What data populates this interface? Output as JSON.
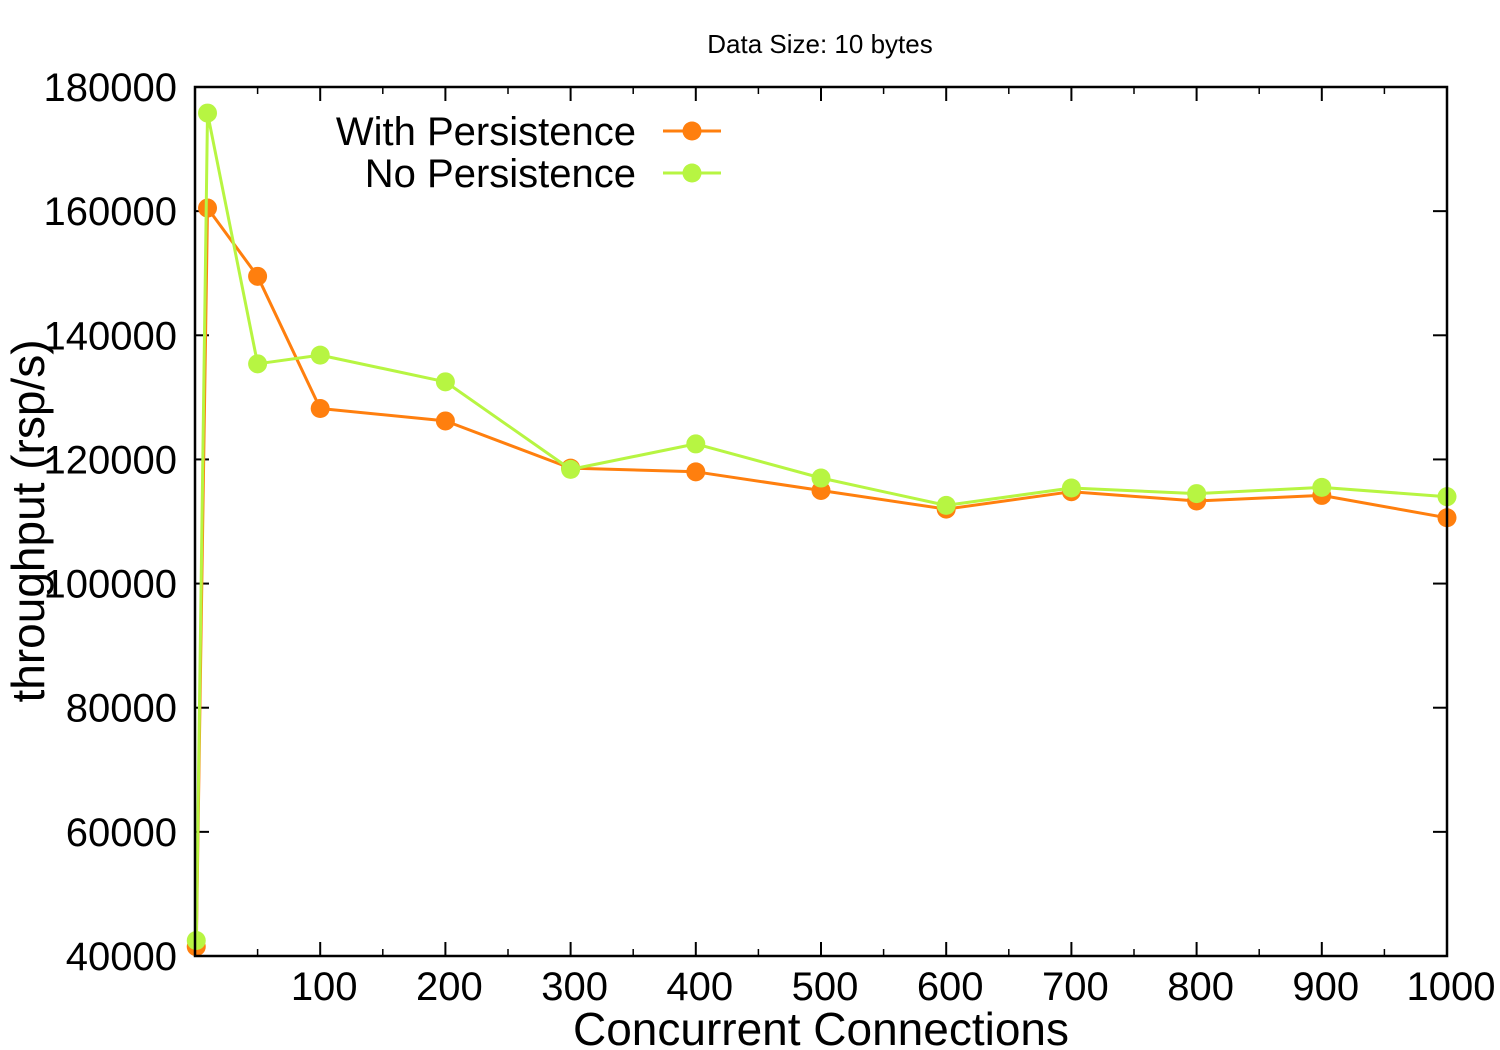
{
  "chart_data": {
    "type": "line",
    "title": "Data Size: 10 bytes",
    "xlabel": "Concurrent Connections",
    "ylabel": "throughput (rsp/s)",
    "xlim": [
      0,
      1000
    ],
    "ylim": [
      40000,
      180000
    ],
    "xticks": [
      100,
      200,
      300,
      400,
      500,
      600,
      700,
      800,
      900,
      1000
    ],
    "xticks_minor": [
      50,
      150,
      250,
      350,
      450,
      550,
      650,
      750,
      850,
      950
    ],
    "yticks": [
      40000,
      60000,
      80000,
      100000,
      120000,
      140000,
      160000,
      180000
    ],
    "grid": false,
    "legend_position": "top-left",
    "series": [
      {
        "name": "With Persistence",
        "color": "#ff7f0e",
        "x": [
          1,
          10,
          50,
          100,
          200,
          300,
          400,
          500,
          600,
          700,
          800,
          900,
          1000
        ],
        "y": [
          41500,
          160500,
          149500,
          128200,
          126200,
          118600,
          118000,
          115000,
          112000,
          114800,
          113300,
          114200,
          110600
        ]
      },
      {
        "name": "No Persistence",
        "color": "#b7f542",
        "x": [
          1,
          10,
          50,
          100,
          200,
          300,
          400,
          500,
          600,
          700,
          800,
          900,
          1000
        ],
        "y": [
          42500,
          175800,
          135400,
          136800,
          132500,
          118400,
          122500,
          117000,
          112600,
          115400,
          114500,
          115500,
          114000
        ]
      }
    ]
  }
}
